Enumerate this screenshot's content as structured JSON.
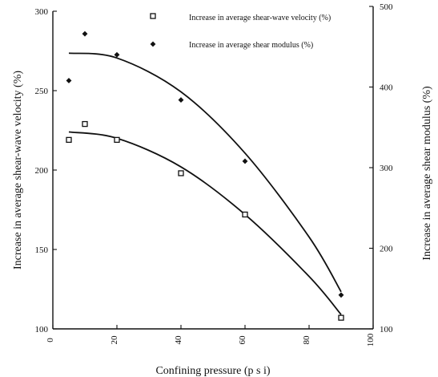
{
  "chart_data": {
    "type": "scatter",
    "xlabel": "Confining pressure (p s i)",
    "ylabel_left": "Increase in average shear-wave velocity (%)",
    "ylabel_right": "Increase in average shear modulus (%)",
    "xlim": [
      0,
      100
    ],
    "ylim_left": [
      100,
      300
    ],
    "ylim_right": [
      100,
      500
    ],
    "x_ticks": [
      "0",
      "20",
      "40",
      "60",
      "80",
      "100"
    ],
    "y_left_ticks": [
      "100",
      "150",
      "200",
      "250",
      "300"
    ],
    "y_right_ticks": [
      "100",
      "200",
      "300",
      "400",
      "500"
    ],
    "grid": false,
    "legend_position": "top-right",
    "series": [
      {
        "name": "Increase in average shear-wave velocity (%)",
        "axis": "left",
        "marker": "square",
        "points": [
          {
            "x": 5,
            "y": 219
          },
          {
            "x": 10,
            "y": 229
          },
          {
            "x": 20,
            "y": 219
          },
          {
            "x": 40,
            "y": 198
          },
          {
            "x": 60,
            "y": 172
          },
          {
            "x": 90,
            "y": 107
          }
        ],
        "trend": [
          {
            "x": 5,
            "y": 224
          },
          {
            "x": 20,
            "y": 220
          },
          {
            "x": 40,
            "y": 202
          },
          {
            "x": 60,
            "y": 172
          },
          {
            "x": 80,
            "y": 133
          },
          {
            "x": 90,
            "y": 109
          }
        ]
      },
      {
        "name": "Increase in average shear modulus (%)",
        "axis": "right",
        "marker": "diamond",
        "points": [
          {
            "x": 5,
            "y": 408
          },
          {
            "x": 10,
            "y": 466
          },
          {
            "x": 20,
            "y": 440
          },
          {
            "x": 40,
            "y": 384
          },
          {
            "x": 60,
            "y": 308
          },
          {
            "x": 90,
            "y": 142
          }
        ],
        "trend": [
          {
            "x": 5,
            "y": 442
          },
          {
            "x": 20,
            "y": 436
          },
          {
            "x": 40,
            "y": 394
          },
          {
            "x": 60,
            "y": 318
          },
          {
            "x": 80,
            "y": 214
          },
          {
            "x": 90,
            "y": 146
          }
        ]
      }
    ]
  }
}
